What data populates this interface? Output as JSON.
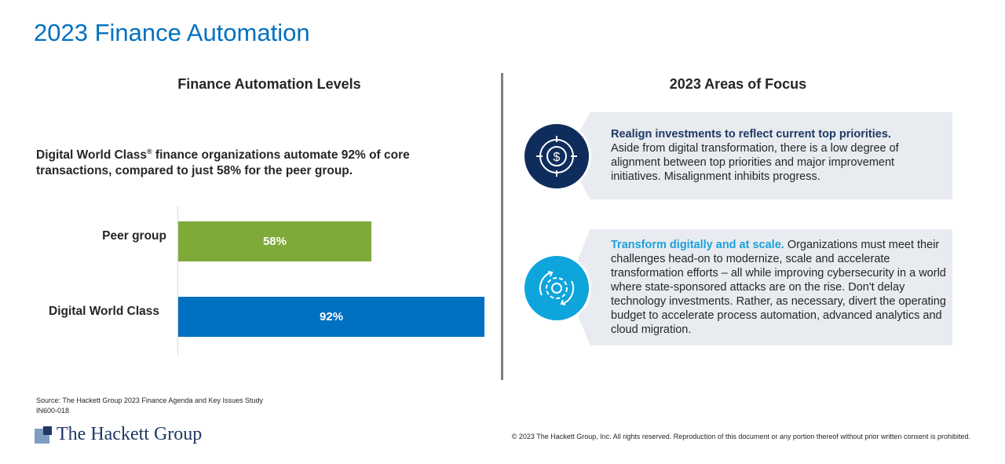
{
  "title": "2023 Finance Automation",
  "left": {
    "heading": "Finance Automation Levels",
    "lead_pre": "Digital World Class",
    "lead_reg": "®",
    "lead_post": " finance organizations automate 92% of core transactions, compared to just 58% for the peer group."
  },
  "chart_data": {
    "type": "bar",
    "orientation": "horizontal",
    "categories": [
      "Peer group",
      "Digital World Class"
    ],
    "values": [
      58,
      92
    ],
    "data_labels": [
      "58%",
      "92%"
    ],
    "colors": [
      "#7faa3a",
      "#0070c0"
    ],
    "xlim": [
      0,
      100
    ],
    "grid": false
  },
  "right": {
    "heading": "2023 Areas of Focus",
    "items": [
      {
        "icon": "dollar-target-icon",
        "color": "#0f2d5c",
        "title": "Realign investments to reflect current top priorities.",
        "title_color": "#1f3864",
        "body": "Aside from digital transformation, there is a low degree of alignment between top priorities and major improvement initiatives. Misalignment inhibits progress."
      },
      {
        "icon": "gear-cycle-icon",
        "color": "#0ea5dd",
        "title": "Transform digitally and at scale.",
        "title_color": "#1ba1db",
        "body": " Organizations must meet their challenges head-on to modernize, scale and accelerate transformation efforts – all while improving cybersecurity in a world where state-sponsored attacks are on the rise. Don't delay technology investments. Rather, as necessary, divert the operating budget to accelerate process automation, advanced analytics and cloud migration."
      }
    ]
  },
  "footer": {
    "source": "Source: The Hackett Group 2023 Finance Agenda and Key Issues Study",
    "code": "IN600-018",
    "logo": "The Hackett Group",
    "copyright": "© 2023 The Hackett Group, Inc. All rights reserved. Reproduction of this document or any portion thereof without prior written consent is prohibited."
  }
}
